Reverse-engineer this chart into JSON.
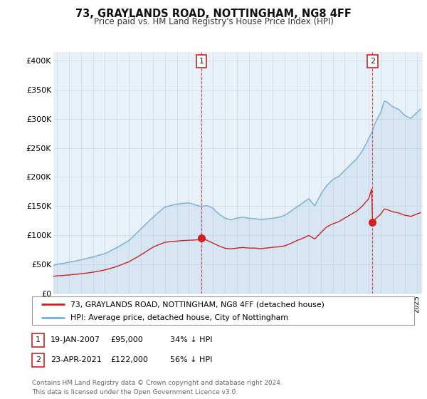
{
  "title": "73, GRAYLANDS ROAD, NOTTINGHAM, NG8 4FF",
  "subtitle": "Price paid vs. HM Land Registry's House Price Index (HPI)",
  "ylabel_ticks": [
    "£0",
    "£50K",
    "£100K",
    "£150K",
    "£200K",
    "£250K",
    "£300K",
    "£350K",
    "£400K"
  ],
  "ytick_values": [
    0,
    50000,
    100000,
    150000,
    200000,
    250000,
    300000,
    350000,
    400000
  ],
  "ylim": [
    0,
    415000
  ],
  "xlim_start": 1994.7,
  "xlim_end": 2025.5,
  "marker1_x": 2007.05,
  "marker1_y": 95000,
  "marker2_x": 2021.3,
  "marker2_y": 122000,
  "hpi_color": "#7ab0d4",
  "price_color": "#cc2222",
  "chart_bg": "#e8f0f8",
  "legend_line1": "73, GRAYLANDS ROAD, NOTTINGHAM, NG8 4FF (detached house)",
  "legend_line2": "HPI: Average price, detached house, City of Nottingham",
  "annotation1_date": "19-JAN-2007",
  "annotation1_price": "£95,000",
  "annotation1_hpi": "34% ↓ HPI",
  "annotation2_date": "23-APR-2021",
  "annotation2_price": "£122,000",
  "annotation2_hpi": "56% ↓ HPI",
  "footer": "Contains HM Land Registry data © Crown copyright and database right 2024.\nThis data is licensed under the Open Government Licence v3.0.",
  "background_color": "#ffffff",
  "grid_color": "#c8d8e8"
}
